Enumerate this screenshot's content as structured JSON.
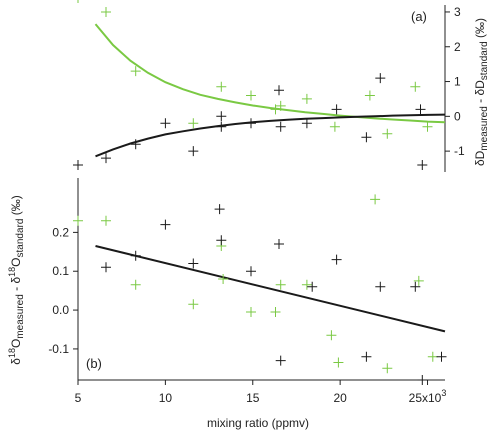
{
  "chart_data": [
    {
      "type": "scatter",
      "panel": "top",
      "panel_label": "(a)",
      "ylabel_parts": {
        "d1": "δD",
        "sub1": "measured",
        "mid": " - δD",
        "sub2": "standard",
        "tail": " (‰)"
      },
      "y_axis_side": "right",
      "xlim": [
        5000,
        26000
      ],
      "ylim": [
        -1.6,
        3.2
      ],
      "yticks": [
        -1,
        0,
        1,
        2,
        3
      ],
      "colors": {
        "black": "#1a1a1a",
        "green": "#7ac943"
      },
      "series": [
        {
          "color_key": "green",
          "marker": "+",
          "points": [
            [
              5000,
              3.4
            ],
            [
              6600,
              3.0
            ],
            [
              8300,
              1.3
            ],
            [
              11600,
              -0.2
            ],
            [
              13200,
              0.85
            ],
            [
              14900,
              0.6
            ],
            [
              16300,
              0.2
            ],
            [
              16600,
              0.3
            ],
            [
              18100,
              0.5
            ],
            [
              19700,
              -0.3
            ],
            [
              21700,
              0.6
            ],
            [
              22700,
              -0.5
            ],
            [
              24300,
              0.85
            ],
            [
              25000,
              -0.3
            ]
          ]
        },
        {
          "color_key": "black",
          "marker": "+",
          "points": [
            [
              5000,
              -1.4
            ],
            [
              6600,
              -1.2
            ],
            [
              8300,
              -0.8
            ],
            [
              10000,
              -0.2
            ],
            [
              11600,
              -1.0
            ],
            [
              13200,
              0.0
            ],
            [
              13200,
              -0.3
            ],
            [
              14900,
              -0.2
            ],
            [
              16500,
              0.75
            ],
            [
              16600,
              -0.3
            ],
            [
              18100,
              -0.2
            ],
            [
              19800,
              0.2
            ],
            [
              21500,
              -0.6
            ],
            [
              22300,
              1.1
            ],
            [
              24600,
              0.2
            ],
            [
              24700,
              -1.4
            ]
          ]
        }
      ],
      "fit_lines": [
        {
          "color_key": "green",
          "points": [
            [
              6000,
              2.65
            ],
            [
              7000,
              2.05
            ],
            [
              8000,
              1.6
            ],
            [
              9000,
              1.25
            ],
            [
              10000,
              0.98
            ],
            [
              11000,
              0.78
            ],
            [
              12000,
              0.62
            ],
            [
              13000,
              0.5
            ],
            [
              14000,
              0.4
            ],
            [
              15000,
              0.31
            ],
            [
              16000,
              0.24
            ],
            [
              17000,
              0.18
            ],
            [
              18000,
              0.12
            ],
            [
              19000,
              0.07
            ],
            [
              20000,
              0.02
            ],
            [
              21000,
              -0.02
            ],
            [
              22000,
              -0.06
            ],
            [
              23000,
              -0.09
            ],
            [
              24000,
              -0.12
            ],
            [
              25000,
              -0.15
            ],
            [
              26000,
              -0.17
            ]
          ]
        },
        {
          "color_key": "black",
          "points": [
            [
              6000,
              -1.15
            ],
            [
              7000,
              -0.95
            ],
            [
              8000,
              -0.78
            ],
            [
              9000,
              -0.64
            ],
            [
              10000,
              -0.52
            ],
            [
              11000,
              -0.43
            ],
            [
              12000,
              -0.35
            ],
            [
              13000,
              -0.28
            ],
            [
              14000,
              -0.22
            ],
            [
              15000,
              -0.17
            ],
            [
              16000,
              -0.13
            ],
            [
              17000,
              -0.1
            ],
            [
              18000,
              -0.07
            ],
            [
              19000,
              -0.05
            ],
            [
              20000,
              -0.03
            ],
            [
              21000,
              -0.01
            ],
            [
              22000,
              0.0
            ],
            [
              23000,
              0.02
            ],
            [
              24000,
              0.03
            ],
            [
              25000,
              0.04
            ],
            [
              26000,
              0.05
            ]
          ]
        }
      ]
    },
    {
      "type": "scatter",
      "panel": "bottom",
      "panel_label": "(b)",
      "ylabel_parts": {
        "d1": "δ",
        "sup1": "18",
        "O1": "O",
        "sub1": "measured",
        "mid": " - δ",
        "sup2": "18",
        "O2": "O",
        "sub2": "standard",
        "tail": " (‰)"
      },
      "y_axis_side": "left",
      "xlabel": "mixing ratio (ppmv)",
      "xlim": [
        5000,
        26000
      ],
      "ylim": [
        -0.18,
        0.34
      ],
      "yticks": [
        -0.1,
        0.0,
        0.1,
        0.2
      ],
      "ytick_labels": [
        "-0.1",
        "0.0",
        "0.1",
        "0.2"
      ],
      "xticks": [
        5000,
        10000,
        15000,
        20000,
        25000
      ],
      "xtick_labels": [
        "5",
        "10",
        "15",
        "20",
        "25x10"
      ],
      "xtick_exponent": "3",
      "colors": {
        "black": "#1a1a1a",
        "green": "#7ac943"
      },
      "series": [
        {
          "color_key": "green",
          "marker": "+",
          "points": [
            [
              5000,
              0.23
            ],
            [
              6600,
              0.23
            ],
            [
              8300,
              0.065
            ],
            [
              11600,
              0.015
            ],
            [
              13200,
              0.165
            ],
            [
              13300,
              0.08
            ],
            [
              14900,
              -0.005
            ],
            [
              16300,
              -0.005
            ],
            [
              16600,
              0.065
            ],
            [
              18100,
              0.065
            ],
            [
              19500,
              -0.065
            ],
            [
              19900,
              -0.135
            ],
            [
              22000,
              0.285
            ],
            [
              22700,
              -0.15
            ],
            [
              24500,
              0.075
            ],
            [
              25300,
              -0.12
            ]
          ]
        },
        {
          "color_key": "black",
          "marker": "+",
          "points": [
            [
              6600,
              0.11
            ],
            [
              8300,
              0.14
            ],
            [
              10000,
              0.22
            ],
            [
              11600,
              0.12
            ],
            [
              13100,
              0.26
            ],
            [
              13200,
              0.18
            ],
            [
              14900,
              0.1
            ],
            [
              16500,
              0.17
            ],
            [
              16600,
              -0.13
            ],
            [
              18400,
              0.06
            ],
            [
              19800,
              0.13
            ],
            [
              21500,
              -0.12
            ],
            [
              22300,
              0.06
            ],
            [
              24300,
              0.06
            ],
            [
              24700,
              -0.18
            ],
            [
              25800,
              -0.12
            ]
          ]
        }
      ],
      "fit_lines": [
        {
          "color_key": "black",
          "points": [
            [
              6000,
              0.165
            ],
            [
              26000,
              -0.055
            ]
          ]
        }
      ]
    }
  ]
}
